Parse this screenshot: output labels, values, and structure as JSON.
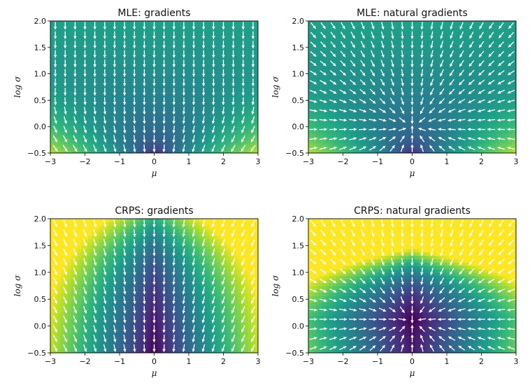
{
  "chart_data": [
    {
      "type": "quiver",
      "title": "MLE: gradients",
      "xlabel": "μ",
      "ylabel": "log σ",
      "xlim": [
        -3,
        3
      ],
      "ylim": [
        -0.5,
        2.0
      ],
      "xticks": [
        "−3",
        "−2",
        "−1",
        "0",
        "1",
        "2",
        "3"
      ],
      "yticks": [
        "−0.5",
        "0.0",
        "0.5",
        "1.0",
        "1.5",
        "2.0"
      ],
      "background": "filled contour of loss, viridis; minimum near μ=0, log σ≈0; bright only at bottom corners",
      "vector_field": "white arrows pointing downward, turning toward μ=0 near the bottom",
      "grid": false
    },
    {
      "type": "quiver",
      "title": "MLE: natural gradients",
      "xlabel": "μ",
      "ylabel": "log σ",
      "xlim": [
        -3,
        3
      ],
      "ylim": [
        -0.5,
        2.0
      ],
      "xticks": [
        "−3",
        "−2",
        "−1",
        "0",
        "1",
        "2",
        "3"
      ],
      "yticks": [
        "−0.5",
        "0.0",
        "0.5",
        "1.0",
        "1.5",
        "2.0"
      ],
      "background": "filled contour of loss, viridis; mostly dark, bright at bottom corners",
      "vector_field": "white arrows pointing toward (μ=0, log σ=0)",
      "grid": false
    },
    {
      "type": "quiver",
      "title": "CRPS: gradients",
      "xlabel": "μ",
      "ylabel": "log σ",
      "xlim": [
        -3,
        3
      ],
      "ylim": [
        -0.5,
        2.0
      ],
      "xticks": [
        "−3",
        "−2",
        "−1",
        "0",
        "1",
        "2",
        "3"
      ],
      "yticks": [
        "−0.5",
        "0.0",
        "0.5",
        "1.0",
        "1.5",
        "2.0"
      ],
      "background": "filled contour of loss, viridis; dark valley along μ=0, teal to yellow toward sides",
      "vector_field": "white arrows pointing mostly downward, slightly toward μ=0",
      "grid": false
    },
    {
      "type": "quiver",
      "title": "CRPS: natural gradients",
      "xlabel": "μ",
      "ylabel": "log σ",
      "xlim": [
        -3,
        3
      ],
      "ylim": [
        -0.5,
        2.0
      ],
      "xticks": [
        "−3",
        "−2",
        "−1",
        "0",
        "1",
        "2",
        "3"
      ],
      "yticks": [
        "−0.5",
        "0.0",
        "0.5",
        "1.0",
        "1.5",
        "2.0"
      ],
      "background": "filled contour of loss, viridis; dark valley along μ=0, green to yellow at sides and top",
      "vector_field": "white arrows pointing toward (μ=0, log σ=0)",
      "grid": false
    }
  ],
  "colors": {
    "viridis": [
      "#440154",
      "#482878",
      "#3e4a89",
      "#31688e",
      "#26828e",
      "#1f9e89",
      "#35b779",
      "#6ece58",
      "#b5de2b",
      "#fde725"
    ],
    "arrow": "#ffffff",
    "axis": "#000000"
  }
}
